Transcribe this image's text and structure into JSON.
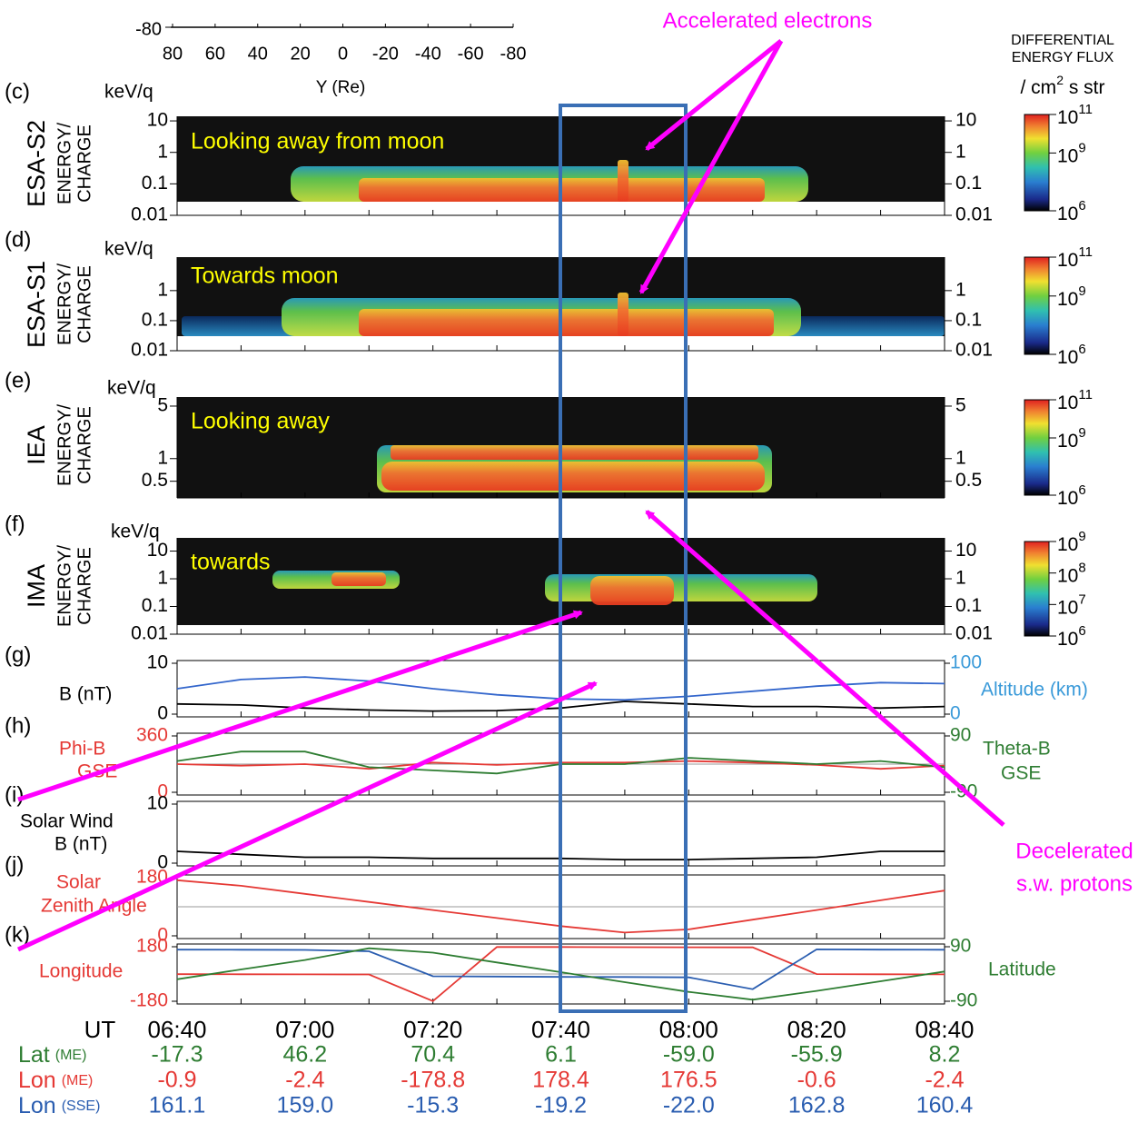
{
  "annotations": {
    "accelerated": "Accelerated electrons",
    "decelerated_1": "Decelerated",
    "decelerated_2": "s.w. protons"
  },
  "colorbar_title": {
    "line1": "DIFFERENTIAL",
    "line2": "ENERGY FLUX",
    "line3": "/ cm",
    "line3_sup": "2",
    "line3_end": " s str"
  },
  "chart_data": [
    {
      "type": "axis",
      "xlabel": "Y (Re)",
      "xlim": [
        80,
        -80
      ],
      "xticks": [
        80,
        60,
        40,
        20,
        0,
        -20,
        -40,
        -60,
        -80
      ],
      "yticks": [
        -80
      ]
    },
    {
      "type": "spectrogram",
      "panel": "(c)",
      "ylabel": [
        "ESA-S2",
        "ENERGY/",
        "CHARGE"
      ],
      "unit": "keV/q",
      "caption": "Looking away from moon",
      "log": true,
      "ylim": [
        0.01,
        14
      ],
      "yticks": [
        10,
        1,
        0.1,
        0.01
      ],
      "y2ticks": [
        10,
        1,
        0.1,
        0.01
      ],
      "cblim": [
        1000000,
        100000000000
      ],
      "cbticks": [
        {
          "value": 100000000000,
          "label": "10",
          "sup": "11"
        },
        {
          "value": 1000000000,
          "label": "10",
          "sup": "9"
        },
        {
          "value": 1000000,
          "label": "10",
          "sup": "6"
        }
      ]
    },
    {
      "type": "spectrogram",
      "panel": "(d)",
      "ylabel": [
        "ESA-S1",
        "ENERGY/",
        "CHARGE"
      ],
      "unit": "keV/q",
      "caption": "Towards moon",
      "log": true,
      "ylim": [
        0.01,
        13
      ],
      "yticks": [
        1,
        0.1,
        0.01
      ],
      "y2ticks": [
        1,
        0.1,
        0.01
      ],
      "cblim": [
        1000000,
        100000000000
      ],
      "cbticks": [
        {
          "value": 100000000000,
          "label": "10",
          "sup": "11"
        },
        {
          "value": 1000000000,
          "label": "10",
          "sup": "9"
        },
        {
          "value": 1000000,
          "label": "10",
          "sup": "6"
        }
      ]
    },
    {
      "type": "spectrogram",
      "panel": "(e)",
      "ylabel": [
        "IEA",
        "ENERGY/",
        "CHARGE"
      ],
      "unit": "keV/q",
      "caption": "Looking away",
      "log": true,
      "ylim": [
        0.3,
        6.6
      ],
      "yticks": [
        5,
        1,
        0.5
      ],
      "y2ticks": [
        5,
        1,
        0.5
      ],
      "cblim": [
        1000000,
        100000000000
      ],
      "cbticks": [
        {
          "value": 100000000000,
          "label": "10",
          "sup": "11"
        },
        {
          "value": 1000000000,
          "label": "10",
          "sup": "9"
        },
        {
          "value": 1000000,
          "label": "10",
          "sup": "6"
        }
      ]
    },
    {
      "type": "spectrogram",
      "panel": "(f)",
      "ylabel": [
        "IMA",
        "ENERGY/",
        "CHARGE"
      ],
      "unit": "keV/q",
      "caption": "towards",
      "log": true,
      "ylim": [
        0.01,
        30
      ],
      "yticks": [
        10,
        1,
        0.1,
        0.01
      ],
      "y2ticks": [
        10,
        1,
        0.1,
        0.01
      ],
      "cblim": [
        1000000,
        1000000000
      ],
      "cbticks": [
        {
          "value": 1000000000,
          "label": "10",
          "sup": "9"
        },
        {
          "value": 100000000,
          "label": "10",
          "sup": "8"
        },
        {
          "value": 10000000,
          "label": "10",
          "sup": "7"
        },
        {
          "value": 1000000,
          "label": "10",
          "sup": "6"
        }
      ]
    },
    {
      "type": "line",
      "panel": "(g)",
      "ylabel": [
        "B (nT)"
      ],
      "ylabel_color": "#000000",
      "ylim": [
        0,
        10
      ],
      "yticks": [
        10,
        0
      ],
      "ytick_color": "#000000",
      "y2label": [
        "Altitude (km)"
      ],
      "y2color": "#3a9ad9",
      "y2lim": [
        0,
        100
      ],
      "y2ticks": [
        100,
        0
      ],
      "series": [
        {
          "color": "#000000",
          "values": [
            2,
            1.8,
            1.2,
            0.8,
            0.6,
            0.7,
            1.2,
            2.5,
            2,
            1.5,
            1.5,
            1.2,
            1.5
          ]
        },
        {
          "color": "#3366cc",
          "axis": "y2",
          "values": [
            50,
            68,
            73,
            65,
            50,
            38,
            30,
            28,
            35,
            45,
            55,
            62,
            60
          ]
        }
      ]
    },
    {
      "type": "line",
      "panel": "(h)",
      "ylabel": [
        "Phi-B",
        "GSE"
      ],
      "ylabel_color": "#e53935",
      "ylim": [
        0,
        360
      ],
      "yticks": [
        360,
        0
      ],
      "ytick_color": "#e53935",
      "y2label": [
        "Theta-B",
        "GSE"
      ],
      "y2color": "#2e7d32",
      "y2lim": [
        -90,
        90
      ],
      "y2ticks": [
        90,
        -90
      ],
      "hlines": [
        180
      ],
      "series": [
        {
          "color": "#e53935",
          "values": [
            180,
            170,
            180,
            150,
            190,
            175,
            190,
            190,
            200,
            190,
            175,
            150,
            170
          ]
        },
        {
          "color": "#2e7d32",
          "axis": "y2",
          "values": [
            10,
            40,
            40,
            -10,
            -20,
            -30,
            0,
            0,
            20,
            10,
            0,
            10,
            -10
          ]
        }
      ]
    },
    {
      "type": "line",
      "panel": "(i)",
      "ylabel": [
        "Solar Wind",
        "B (nT)"
      ],
      "ylabel_color": "#000000",
      "ylim": [
        0,
        10
      ],
      "yticks": [
        10,
        0
      ],
      "ytick_color": "#000000",
      "series": [
        {
          "color": "#000000",
          "values": [
            2,
            1.5,
            1,
            1,
            0.8,
            0.8,
            0.8,
            0.6,
            0.6,
            0.8,
            1,
            2,
            2
          ]
        }
      ]
    },
    {
      "type": "line",
      "panel": "(j)",
      "ylabel": [
        "Solar",
        "Zenith Angle"
      ],
      "ylabel_color": "#e53935",
      "ylim": [
        0,
        180
      ],
      "yticks": [
        180,
        0
      ],
      "ytick_color": "#e53935",
      "hlines": [
        90
      ],
      "series": [
        {
          "color": "#e53935",
          "values": [
            172,
            155,
            130,
            105,
            80,
            55,
            30,
            10,
            20,
            50,
            80,
            110,
            140
          ]
        }
      ]
    },
    {
      "type": "line",
      "panel": "(k)",
      "ylabel": [
        "Longitude"
      ],
      "ylabel_color": "#e53935",
      "ylim": [
        -180,
        180
      ],
      "yticks": [
        180,
        -180
      ],
      "ytick_color": "#e53935",
      "y2label": [
        "Latitude"
      ],
      "y2color": "#2e7d32",
      "y2lim": [
        -90,
        90
      ],
      "y2ticks": [
        90,
        -90
      ],
      "hlines": [
        0
      ],
      "series": [
        {
          "color": "#e53935",
          "values": [
            -0.9,
            -1.5,
            -2.4,
            -3,
            -178.8,
            178,
            178.4,
            177,
            176.5,
            176,
            -0.6,
            -1.5,
            -2.4
          ]
        },
        {
          "color": "#2a5db0",
          "values": [
            161.1,
            160,
            159,
            150,
            -15.3,
            -17,
            -19.2,
            -20,
            -22,
            -100,
            162.8,
            161,
            160.4
          ]
        },
        {
          "color": "#2e7d32",
          "axis": "y2",
          "values": [
            -17.3,
            15,
            46.2,
            85,
            70.4,
            38,
            6.1,
            -27,
            -59,
            -85,
            -55.9,
            -24,
            8.2
          ]
        }
      ]
    }
  ],
  "time_axis": {
    "label": "UT",
    "categories": [
      "06:40",
      null,
      "07:00",
      null,
      "07:20",
      null,
      "07:40",
      null,
      "08:00",
      null,
      "08:20",
      null,
      "08:40"
    ]
  },
  "table": {
    "rows": [
      {
        "name": "Lat",
        "unit": "(ME)",
        "color": "#2e7d32",
        "values": [
          "-17.3",
          "46.2",
          "70.4",
          "6.1",
          "-59.0",
          "-55.9",
          "8.2"
        ]
      },
      {
        "name": "Lon",
        "unit": "(ME)",
        "color": "#e53935",
        "values": [
          "-0.9",
          "-2.4",
          "-178.8",
          "178.4",
          "176.5",
          "-0.6",
          "-2.4"
        ]
      },
      {
        "name": "Lon",
        "unit": "(SSE)",
        "color": "#2a5db0",
        "values": [
          "161.1",
          "159.0",
          "-15.3",
          "-19.2",
          "-22.0",
          "162.8",
          "160.4"
        ]
      }
    ]
  }
}
